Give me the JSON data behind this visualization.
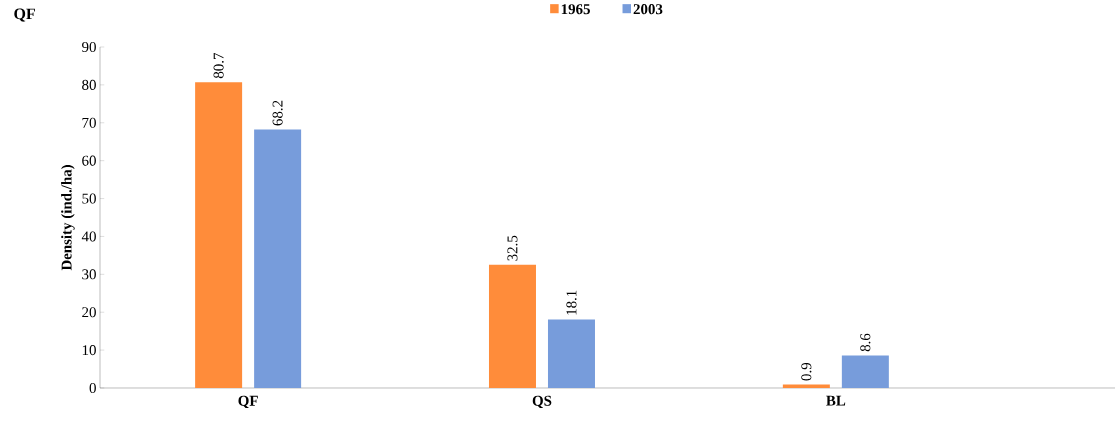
{
  "chart_data": {
    "type": "bar",
    "title": "QF",
    "ylabel": "Density (ind./ha)",
    "categories": [
      "QF",
      "QS",
      "BL"
    ],
    "series": [
      {
        "name": "1965",
        "color": "#ff8c3a",
        "values": [
          80.7,
          32.5,
          0.9
        ]
      },
      {
        "name": "2003",
        "color": "#779cdb",
        "values": [
          68.2,
          18.1,
          8.6
        ]
      }
    ],
    "ylim": [
      0,
      90
    ],
    "yticks": [
      0,
      10,
      20,
      30,
      40,
      50,
      60,
      70,
      80,
      90
    ],
    "data_labels": true,
    "legend": "top",
    "grid": false
  }
}
